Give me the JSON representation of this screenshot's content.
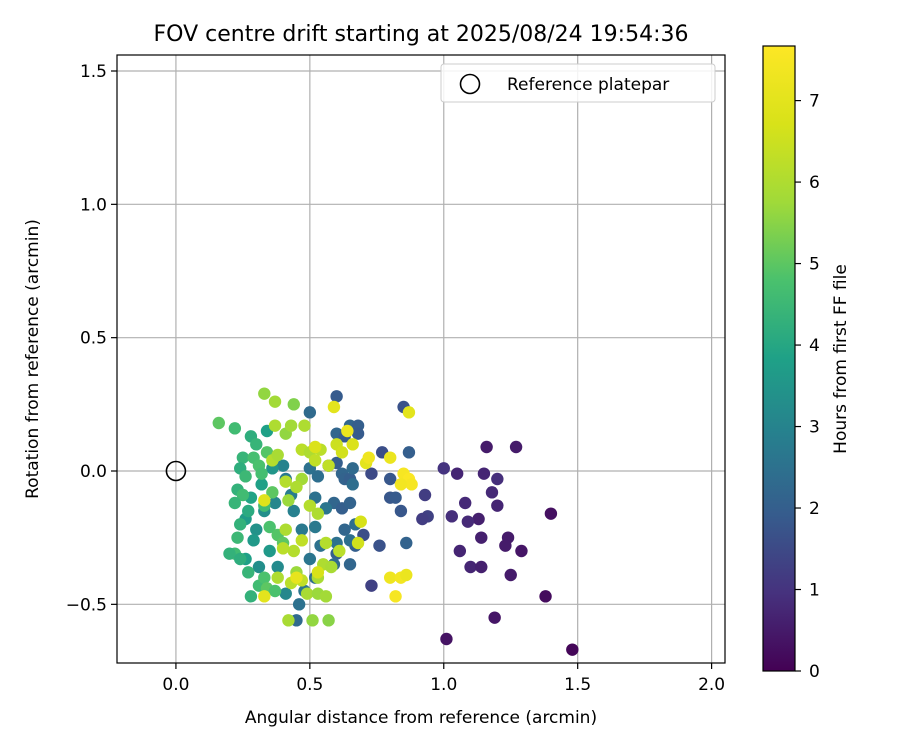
{
  "chart_data": {
    "type": "scatter",
    "title": "FOV centre drift starting at 2025/08/24 19:54:36",
    "xlabel": "Angular distance from reference (arcmin)",
    "ylabel": "Rotation from reference (arcmin)",
    "xlim": [
      -0.22,
      2.05
    ],
    "ylim": [
      -0.72,
      1.56
    ],
    "xticks": [
      0.0,
      0.5,
      1.0,
      1.5,
      2.0
    ],
    "xtick_labels": [
      "0.0",
      "0.5",
      "1.0",
      "1.5",
      "2.0"
    ],
    "yticks": [
      -0.5,
      0.0,
      0.5,
      1.0,
      1.5
    ],
    "ytick_labels": [
      "−0.5",
      "0.0",
      "0.5",
      "1.0",
      "1.5"
    ],
    "grid": true,
    "legend": {
      "position": "top-right",
      "entries": [
        "Reference platepar"
      ]
    },
    "reference_point": {
      "x": 0.0,
      "y": 0.0,
      "marker": "open-circle"
    },
    "colorbar": {
      "label": "Hours from first FF file",
      "colormap": "viridis",
      "range": [
        0,
        7.67
      ],
      "ticks": [
        0,
        1,
        2,
        3,
        4,
        5,
        6,
        7
      ],
      "tick_labels": [
        "0",
        "1",
        "2",
        "3",
        "4",
        "5",
        "6",
        "7"
      ]
    },
    "points": [
      [
        1.48,
        -0.67,
        0.1
      ],
      [
        1.01,
        -0.63,
        0.35
      ],
      [
        1.38,
        -0.47,
        0.2
      ],
      [
        1.19,
        -0.55,
        0.4
      ],
      [
        1.4,
        -0.16,
        0.3
      ],
      [
        1.27,
        0.09,
        0.5
      ],
      [
        1.16,
        0.09,
        0.5
      ],
      [
        1.05,
        -0.01,
        0.7
      ],
      [
        1.0,
        0.01,
        1.0
      ],
      [
        1.15,
        -0.01,
        0.7
      ],
      [
        1.18,
        -0.08,
        0.8
      ],
      [
        1.2,
        -0.03,
        0.9
      ],
      [
        1.08,
        -0.12,
        0.8
      ],
      [
        1.2,
        -0.13,
        0.7
      ],
      [
        1.13,
        -0.18,
        0.6
      ],
      [
        1.09,
        -0.19,
        0.8
      ],
      [
        1.03,
        -0.17,
        0.9
      ],
      [
        1.14,
        -0.25,
        0.6
      ],
      [
        1.24,
        -0.25,
        0.5
      ],
      [
        1.23,
        -0.28,
        0.5
      ],
      [
        1.29,
        -0.3,
        0.4
      ],
      [
        1.06,
        -0.3,
        0.7
      ],
      [
        1.1,
        -0.36,
        0.7
      ],
      [
        1.14,
        -0.36,
        0.6
      ],
      [
        1.25,
        -0.39,
        0.5
      ],
      [
        0.93,
        -0.09,
        1.2
      ],
      [
        0.94,
        -0.17,
        1.3
      ],
      [
        0.92,
        -0.18,
        1.2
      ],
      [
        0.87,
        0.07,
        2.0
      ],
      [
        0.85,
        0.24,
        1.7
      ],
      [
        0.8,
        -0.03,
        1.8
      ],
      [
        0.8,
        -0.1,
        1.8
      ],
      [
        0.82,
        -0.1,
        1.9
      ],
      [
        0.84,
        -0.15,
        1.8
      ],
      [
        0.86,
        -0.27,
        2.1
      ],
      [
        0.77,
        0.07,
        1.6
      ],
      [
        0.73,
        -0.01,
        1.5
      ],
      [
        0.76,
        -0.28,
        1.7
      ],
      [
        0.73,
        -0.43,
        1.3
      ],
      [
        0.7,
        -0.24,
        1.6
      ],
      [
        0.67,
        -0.2,
        2.4
      ],
      [
        0.67,
        -0.28,
        2.0
      ],
      [
        0.6,
        0.28,
        1.9
      ],
      [
        0.6,
        0.14,
        2.2
      ],
      [
        0.63,
        0.13,
        1.9
      ],
      [
        0.65,
        0.17,
        2.2
      ],
      [
        0.68,
        0.17,
        2.0
      ],
      [
        0.68,
        0.14,
        1.9
      ],
      [
        0.6,
        0.03,
        2.0
      ],
      [
        0.57,
        0.02,
        2.3
      ],
      [
        0.62,
        -0.01,
        2.2
      ],
      [
        0.63,
        -0.03,
        2.1
      ],
      [
        0.65,
        -0.03,
        2.0
      ],
      [
        0.66,
        0.01,
        2.3
      ],
      [
        0.66,
        -0.05,
        2.4
      ],
      [
        0.59,
        -0.12,
        2.2
      ],
      [
        0.62,
        -0.14,
        2.0
      ],
      [
        0.65,
        -0.12,
        2.1
      ],
      [
        0.63,
        -0.22,
        2.2
      ],
      [
        0.6,
        -0.27,
        2.5
      ],
      [
        0.65,
        -0.26,
        2.4
      ],
      [
        0.6,
        -0.31,
        2.0
      ],
      [
        0.59,
        -0.35,
        2.3
      ],
      [
        0.65,
        -0.35,
        2.2
      ],
      [
        0.5,
        0.22,
        2.3
      ],
      [
        0.5,
        0.01,
        2.5
      ],
      [
        0.53,
        -0.02,
        2.4
      ],
      [
        0.52,
        -0.1,
        2.5
      ],
      [
        0.56,
        -0.14,
        2.6
      ],
      [
        0.52,
        -0.21,
        2.7
      ],
      [
        0.54,
        -0.28,
        2.5
      ],
      [
        0.5,
        -0.33,
        2.6
      ],
      [
        0.52,
        -0.4,
        2.4
      ],
      [
        0.46,
        -0.5,
        2.5
      ],
      [
        0.45,
        -0.56,
        2.3
      ],
      [
        0.48,
        -0.45,
        2.6
      ],
      [
        0.41,
        -0.03,
        2.7
      ],
      [
        0.43,
        -0.09,
        2.8
      ],
      [
        0.44,
        -0.15,
        2.9
      ],
      [
        0.47,
        -0.22,
        2.7
      ],
      [
        0.4,
        0.02,
        3.0
      ],
      [
        0.37,
        -0.12,
        3.1
      ],
      [
        0.33,
        -0.15,
        3.3
      ],
      [
        0.3,
        -0.22,
        3.4
      ],
      [
        0.35,
        -0.3,
        3.6
      ],
      [
        0.31,
        -0.36,
        3.3
      ],
      [
        0.38,
        -0.36,
        3.2
      ],
      [
        0.41,
        -0.46,
        3.1
      ],
      [
        0.34,
        0.15,
        3.8
      ],
      [
        0.36,
        0.01,
        3.5
      ],
      [
        0.32,
        -0.05,
        3.8
      ],
      [
        0.28,
        -0.1,
        3.9
      ],
      [
        0.26,
        -0.18,
        3.7
      ],
      [
        0.29,
        -0.26,
        3.6
      ],
      [
        0.26,
        -0.33,
        3.8
      ],
      [
        0.22,
        0.16,
        4.6
      ],
      [
        0.28,
        0.13,
        4.2
      ],
      [
        0.3,
        0.1,
        4.4
      ],
      [
        0.25,
        0.05,
        4.4
      ],
      [
        0.24,
        0.01,
        4.2
      ],
      [
        0.26,
        -0.02,
        4.5
      ],
      [
        0.23,
        -0.07,
        4.3
      ],
      [
        0.25,
        -0.09,
        4.6
      ],
      [
        0.22,
        -0.12,
        4.4
      ],
      [
        0.27,
        -0.15,
        4.1
      ],
      [
        0.24,
        -0.2,
        4.3
      ],
      [
        0.23,
        -0.25,
        4.5
      ],
      [
        0.22,
        -0.31,
        4.6
      ],
      [
        0.2,
        -0.31,
        4.3
      ],
      [
        0.24,
        -0.33,
        4.2
      ],
      [
        0.27,
        -0.38,
        4.4
      ],
      [
        0.31,
        -0.43,
        4.6
      ],
      [
        0.28,
        -0.47,
        4.3
      ],
      [
        0.33,
        -0.4,
        4.8
      ],
      [
        0.34,
        -0.44,
        5.0
      ],
      [
        0.37,
        -0.45,
        4.8
      ],
      [
        0.16,
        0.18,
        5.0
      ],
      [
        0.29,
        0.05,
        4.7
      ],
      [
        0.31,
        0.02,
        4.8
      ],
      [
        0.34,
        0.07,
        4.9
      ],
      [
        0.32,
        -0.01,
        4.7
      ],
      [
        0.36,
        -0.08,
        5.0
      ],
      [
        0.33,
        -0.13,
        4.6
      ],
      [
        0.35,
        -0.21,
        4.8
      ],
      [
        0.38,
        -0.24,
        4.9
      ],
      [
        0.4,
        -0.27,
        5.0
      ],
      [
        0.33,
        0.29,
        5.6
      ],
      [
        0.37,
        0.26,
        5.8
      ],
      [
        0.44,
        0.25,
        5.4
      ],
      [
        0.37,
        0.17,
        6.0
      ],
      [
        0.41,
        0.14,
        5.6
      ],
      [
        0.43,
        0.17,
        5.8
      ],
      [
        0.48,
        0.17,
        6.0
      ],
      [
        0.36,
        0.04,
        6.1
      ],
      [
        0.38,
        0.06,
        5.9
      ],
      [
        0.47,
        0.08,
        6.2
      ],
      [
        0.5,
        0.07,
        6.0
      ],
      [
        0.52,
        0.04,
        6.3
      ],
      [
        0.54,
        0.08,
        6.2
      ],
      [
        0.41,
        -0.04,
        6.1
      ],
      [
        0.47,
        -0.03,
        5.8
      ],
      [
        0.45,
        -0.06,
        6.0
      ],
      [
        0.42,
        -0.11,
        5.7
      ],
      [
        0.41,
        -0.22,
        6.0
      ],
      [
        0.4,
        -0.29,
        6.2
      ],
      [
        0.44,
        -0.3,
        6.1
      ],
      [
        0.45,
        -0.38,
        5.7
      ],
      [
        0.38,
        -0.4,
        6.0
      ],
      [
        0.43,
        -0.42,
        6.2
      ],
      [
        0.47,
        -0.41,
        6.3
      ],
      [
        0.49,
        -0.46,
        5.9
      ],
      [
        0.53,
        -0.46,
        5.7
      ],
      [
        0.56,
        -0.47,
        5.8
      ],
      [
        0.55,
        -0.35,
        6.0
      ],
      [
        0.58,
        -0.36,
        5.9
      ],
      [
        0.56,
        -0.27,
        6.1
      ],
      [
        0.61,
        -0.3,
        6.2
      ],
      [
        0.5,
        -0.13,
        6.1
      ],
      [
        0.53,
        -0.16,
        6.0
      ],
      [
        0.47,
        -0.26,
        6.3
      ],
      [
        0.42,
        -0.56,
        5.9
      ],
      [
        0.51,
        -0.56,
        5.6
      ],
      [
        0.57,
        -0.56,
        5.5
      ],
      [
        0.53,
        -0.4,
        5.9
      ],
      [
        0.57,
        0.02,
        6.3
      ],
      [
        0.6,
        0.1,
        6.5
      ],
      [
        0.62,
        0.07,
        6.6
      ],
      [
        0.59,
        0.24,
        7.0
      ],
      [
        0.64,
        0.15,
        7.2
      ],
      [
        0.66,
        0.1,
        6.8
      ],
      [
        0.71,
        0.03,
        7.0
      ],
      [
        0.72,
        0.05,
        7.3
      ],
      [
        0.69,
        -0.19,
        6.7
      ],
      [
        0.68,
        -0.27,
        6.6
      ],
      [
        0.33,
        -0.11,
        6.9
      ],
      [
        0.33,
        -0.47,
        7.0
      ],
      [
        0.45,
        -0.4,
        7.1
      ],
      [
        0.52,
        0.09,
        6.8
      ],
      [
        0.53,
        -0.38,
        6.7
      ],
      [
        0.8,
        0.05,
        7.2
      ],
      [
        0.87,
        0.22,
        7.0
      ],
      [
        0.85,
        -0.01,
        7.5
      ],
      [
        0.87,
        -0.03,
        7.6
      ],
      [
        0.88,
        -0.05,
        7.5
      ],
      [
        0.84,
        -0.05,
        7.4
      ],
      [
        0.8,
        -0.4,
        7.3
      ],
      [
        0.84,
        -0.4,
        7.4
      ],
      [
        0.86,
        -0.39,
        7.2
      ],
      [
        0.82,
        -0.47,
        7.5
      ]
    ]
  }
}
